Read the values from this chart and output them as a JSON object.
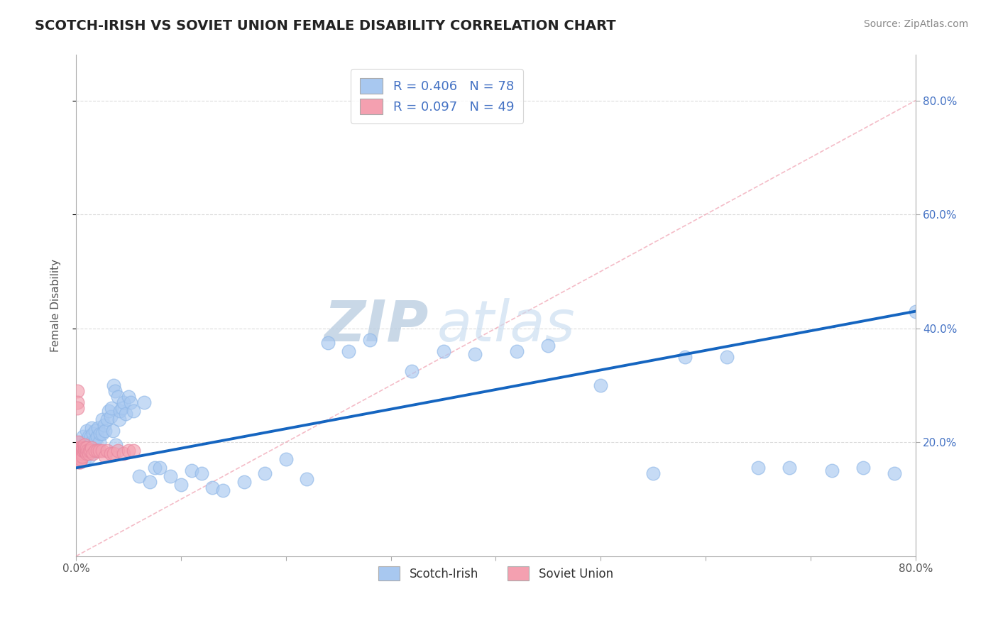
{
  "title": "SCOTCH-IRISH VS SOVIET UNION FEMALE DISABILITY CORRELATION CHART",
  "source": "Source: ZipAtlas.com",
  "xlabel": "",
  "ylabel": "Female Disability",
  "xlim": [
    0,
    0.8
  ],
  "ylim": [
    0.0,
    0.88
  ],
  "blue_R": 0.406,
  "blue_N": 78,
  "pink_R": 0.097,
  "pink_N": 49,
  "blue_color": "#A8C8F0",
  "pink_color": "#F4A0B0",
  "blue_line_color": "#1565C0",
  "pink_line_color": "#F090A0",
  "blue_scatter_x": [
    0.005,
    0.005,
    0.006,
    0.007,
    0.008,
    0.009,
    0.01,
    0.01,
    0.011,
    0.012,
    0.013,
    0.013,
    0.014,
    0.015,
    0.015,
    0.016,
    0.017,
    0.018,
    0.019,
    0.02,
    0.02,
    0.021,
    0.022,
    0.023,
    0.025,
    0.025,
    0.027,
    0.028,
    0.03,
    0.031,
    0.033,
    0.034,
    0.035,
    0.036,
    0.037,
    0.038,
    0.04,
    0.041,
    0.042,
    0.044,
    0.045,
    0.047,
    0.05,
    0.052,
    0.055,
    0.06,
    0.065,
    0.07,
    0.075,
    0.08,
    0.09,
    0.1,
    0.11,
    0.12,
    0.13,
    0.14,
    0.16,
    0.18,
    0.2,
    0.22,
    0.24,
    0.26,
    0.28,
    0.32,
    0.35,
    0.38,
    0.42,
    0.45,
    0.5,
    0.55,
    0.58,
    0.62,
    0.65,
    0.68,
    0.72,
    0.75,
    0.78,
    0.8
  ],
  "blue_scatter_y": [
    0.18,
    0.2,
    0.19,
    0.21,
    0.17,
    0.2,
    0.185,
    0.22,
    0.19,
    0.21,
    0.195,
    0.175,
    0.21,
    0.2,
    0.225,
    0.215,
    0.195,
    0.22,
    0.205,
    0.21,
    0.185,
    0.225,
    0.2,
    0.215,
    0.24,
    0.215,
    0.23,
    0.22,
    0.24,
    0.255,
    0.245,
    0.26,
    0.22,
    0.3,
    0.29,
    0.195,
    0.28,
    0.24,
    0.255,
    0.26,
    0.27,
    0.25,
    0.28,
    0.27,
    0.255,
    0.14,
    0.27,
    0.13,
    0.155,
    0.155,
    0.14,
    0.125,
    0.15,
    0.145,
    0.12,
    0.115,
    0.13,
    0.145,
    0.17,
    0.135,
    0.375,
    0.36,
    0.38,
    0.325,
    0.36,
    0.355,
    0.36,
    0.37,
    0.3,
    0.145,
    0.35,
    0.35,
    0.155,
    0.155,
    0.15,
    0.155,
    0.145,
    0.43
  ],
  "pink_scatter_x": [
    0.001,
    0.001,
    0.001,
    0.002,
    0.002,
    0.002,
    0.002,
    0.002,
    0.003,
    0.003,
    0.003,
    0.003,
    0.004,
    0.004,
    0.004,
    0.004,
    0.005,
    0.005,
    0.005,
    0.005,
    0.006,
    0.006,
    0.006,
    0.007,
    0.007,
    0.008,
    0.008,
    0.009,
    0.009,
    0.01,
    0.01,
    0.011,
    0.012,
    0.013,
    0.014,
    0.015,
    0.016,
    0.018,
    0.02,
    0.022,
    0.025,
    0.028,
    0.03,
    0.033,
    0.036,
    0.04,
    0.045,
    0.05,
    0.055
  ],
  "pink_scatter_y": [
    0.29,
    0.27,
    0.26,
    0.18,
    0.19,
    0.175,
    0.165,
    0.2,
    0.185,
    0.18,
    0.175,
    0.165,
    0.18,
    0.175,
    0.165,
    0.19,
    0.185,
    0.175,
    0.17,
    0.19,
    0.185,
    0.18,
    0.175,
    0.185,
    0.19,
    0.185,
    0.195,
    0.185,
    0.19,
    0.19,
    0.18,
    0.185,
    0.18,
    0.185,
    0.185,
    0.19,
    0.18,
    0.185,
    0.185,
    0.185,
    0.185,
    0.175,
    0.185,
    0.18,
    0.18,
    0.185,
    0.18,
    0.185,
    0.185
  ],
  "watermark_zip": "ZIP",
  "watermark_atlas": "atlas",
  "watermark_color": "#C8DCF0",
  "background_color": "#FFFFFF",
  "grid_color": "#CCCCCC",
  "blue_trend_x0": 0.0,
  "blue_trend_y0": 0.155,
  "blue_trend_x1": 0.8,
  "blue_trend_y1": 0.43,
  "pink_trend_x0": 0.0,
  "pink_trend_y0": 0.0,
  "pink_trend_x1": 0.8,
  "pink_trend_y1": 0.8
}
